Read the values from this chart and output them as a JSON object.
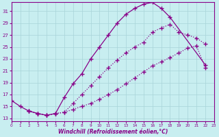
{
  "xlabel": "Windchill (Refroidissement éolien,°C)",
  "bg_color": "#c8eef0",
  "grid_color": "#a8d4d8",
  "line_color": "#880088",
  "xlim": [
    0,
    23
  ],
  "ylim": [
    13,
    32
  ],
  "yticks": [
    13,
    15,
    17,
    19,
    21,
    23,
    25,
    27,
    29,
    31
  ],
  "xticks": [
    0,
    1,
    2,
    3,
    4,
    5,
    6,
    7,
    8,
    9,
    10,
    11,
    12,
    13,
    14,
    15,
    16,
    17,
    18,
    19,
    20,
    21,
    22,
    23
  ],
  "curve1_x": [
    0,
    1,
    2,
    3,
    4,
    5,
    6,
    7,
    8,
    9,
    10,
    11,
    12,
    13,
    14,
    15,
    16,
    17,
    18,
    22
  ],
  "curve1_y": [
    16.0,
    15.0,
    14.2,
    13.8,
    13.5,
    13.8,
    16.5,
    18.8,
    20.5,
    23.0,
    25.0,
    27.0,
    29.0,
    30.5,
    31.5,
    32.2,
    32.5,
    31.5,
    30.0,
    22.0
  ],
  "curve2_x": [
    2,
    3,
    4,
    5,
    6,
    7,
    8,
    9,
    10,
    11,
    12,
    13,
    14,
    15,
    16,
    17,
    18,
    19,
    20,
    21,
    22
  ],
  "curve2_y": [
    14.2,
    13.8,
    13.5,
    13.8,
    14.0,
    15.5,
    17.0,
    18.5,
    20.0,
    21.5,
    22.8,
    24.0,
    25.0,
    25.8,
    27.5,
    28.2,
    28.8,
    27.5,
    27.0,
    26.5,
    25.5
  ],
  "curve3_x": [
    2,
    3,
    4,
    5,
    6,
    7,
    8,
    9,
    10,
    11,
    12,
    13,
    14,
    15,
    16,
    17,
    18,
    19,
    20,
    21,
    22
  ],
  "curve3_y": [
    14.2,
    13.8,
    13.5,
    13.8,
    14.0,
    14.5,
    15.0,
    15.5,
    16.2,
    17.0,
    17.8,
    18.8,
    19.8,
    20.8,
    21.8,
    22.5,
    23.2,
    24.0,
    24.8,
    25.2,
    21.5
  ]
}
